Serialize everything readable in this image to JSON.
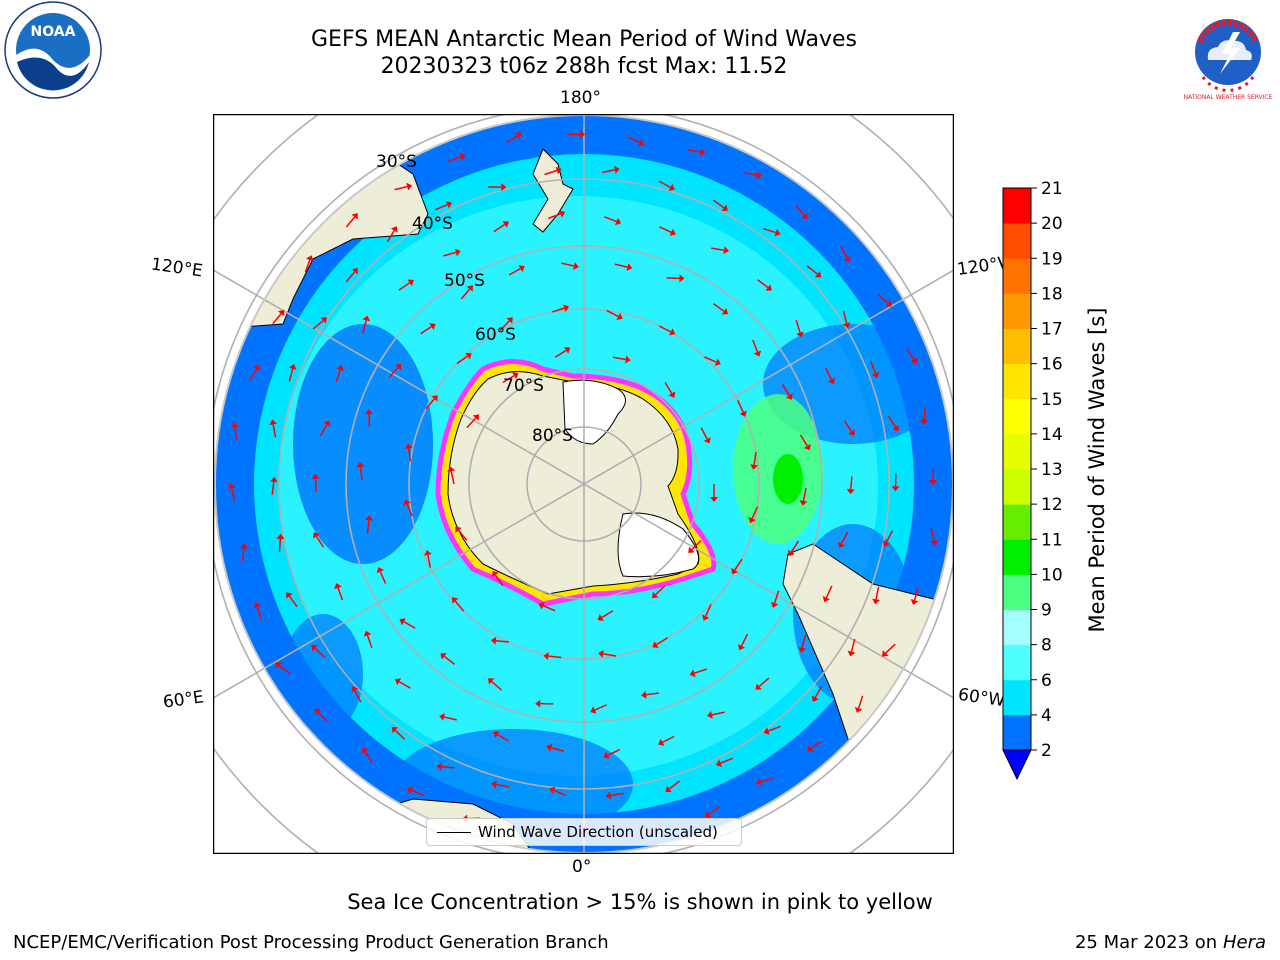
{
  "header": {
    "title_line1": "GEFS MEAN Antarctic Mean Period of Wind Waves",
    "title_line2": "20230323 t06z 288h fcst   Max: 11.52"
  },
  "logos": {
    "left": {
      "icon": "noaa-logo",
      "text": "NOAA"
    },
    "right": {
      "icon": "nws-logo",
      "text": "NATIONAL WEATHER SERVICE"
    }
  },
  "map": {
    "projection": "south-polar-stereographic",
    "longitude_labels": {
      "top": "180°",
      "bottom": "0°",
      "left_upper": "120°E",
      "right_upper": "120°W",
      "left_lower": "60°E",
      "right_lower": "60°W"
    },
    "latitude_labels": [
      "30°S",
      "40°S",
      "50°S",
      "60°S",
      "70°S",
      "80°S"
    ],
    "legend": "Wind Wave Direction (unscaled)",
    "colors": {
      "land": "#eeedd8",
      "ice_shelf": "#ffffff",
      "sea_ice_edge": "#ff33ff",
      "arrow": "#ff0000",
      "grid": "#b0b0b0"
    }
  },
  "colorbar": {
    "label": "Mean Period of Wind Waves [s]",
    "ticks": [
      "2",
      "4",
      "6",
      "8",
      "9",
      "10",
      "11",
      "12",
      "13",
      "14",
      "15",
      "16",
      "17",
      "18",
      "19",
      "20",
      "21"
    ],
    "colors": [
      "#0073ff",
      "#00e5ff",
      "#4dffff",
      "#a3ffff",
      "#4dff80",
      "#00ee00",
      "#66ee00",
      "#ccff00",
      "#e5ff00",
      "#ffff00",
      "#ffe600",
      "#ffbf00",
      "#ff9900",
      "#ff7300",
      "#ff4d00",
      "#ff0000"
    ],
    "under_color": "#0000ff"
  },
  "note": "Sea Ice Concentration > 15% is shown in pink to yellow",
  "footer": {
    "left": "NCEP/EMC/Verification Post Processing Product Generation Branch",
    "right_date": "25 Mar 2023 on",
    "right_host": "Hera"
  }
}
